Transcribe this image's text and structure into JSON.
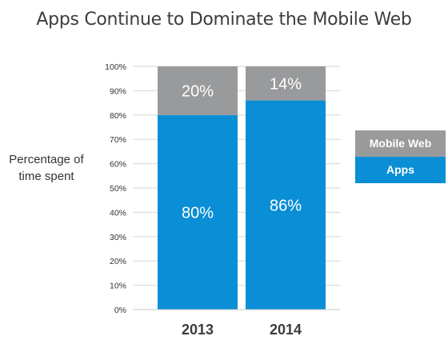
{
  "chart_data": {
    "type": "bar",
    "stacked": true,
    "title": "Apps Continue to Dominate the Mobile Web",
    "ylabel": "Percentage of time spent",
    "xlabel": "",
    "ylim": [
      0,
      100
    ],
    "y_ticks": [
      "0%",
      "10%",
      "20%",
      "30%",
      "40%",
      "50%",
      "60%",
      "70%",
      "80%",
      "90%",
      "100%"
    ],
    "grid": true,
    "legend_position": "right",
    "categories": [
      "2013",
      "2014"
    ],
    "series": [
      {
        "name": "Apps",
        "values": [
          80,
          86
        ],
        "labels": [
          "80%",
          "86%"
        ],
        "color": "#0a8fd6"
      },
      {
        "name": "Mobile Web",
        "values": [
          20,
          14
        ],
        "labels": [
          "20%",
          "14%"
        ],
        "color": "#999a9c"
      }
    ]
  },
  "legend": [
    {
      "label": "Mobile Web",
      "color": "#999a9c"
    },
    {
      "label": "Apps",
      "color": "#0a8fd6"
    }
  ]
}
